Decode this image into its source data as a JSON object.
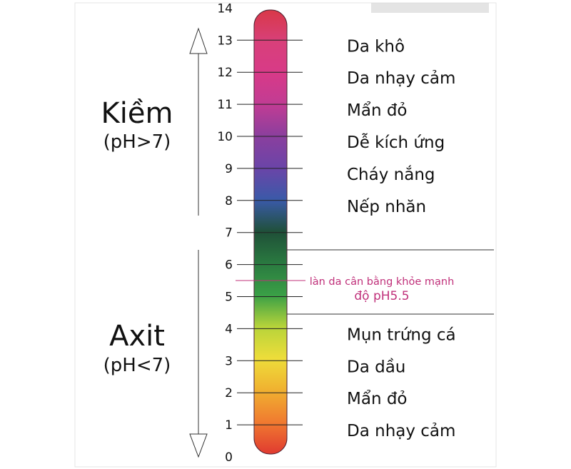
{
  "scale": {
    "min": 0,
    "max": 14,
    "ticks": [
      "0",
      "1",
      "2",
      "3",
      "4",
      "5",
      "6",
      "7",
      "8",
      "9",
      "10",
      "11",
      "12",
      "13",
      "14"
    ]
  },
  "alkaline": {
    "title": "Kiềm",
    "subtitle": "(pH>7)",
    "direction": "up"
  },
  "acid": {
    "title": "Axit",
    "subtitle": "(pH<7)",
    "direction": "down"
  },
  "alkaline_conditions": [
    {
      "label": "Da khô",
      "ph": 13
    },
    {
      "label": "Da nhạy cảm",
      "ph": 12
    },
    {
      "label": "Mẩn đỏ",
      "ph": 11
    },
    {
      "label": "Dễ kích ứng",
      "ph": 10
    },
    {
      "label": "Cháy nắng",
      "ph": 9
    },
    {
      "label": "Nếp nhăn",
      "ph": 8
    }
  ],
  "acid_conditions": [
    {
      "label": "Mụn trứng cá",
      "ph": 4
    },
    {
      "label": "Da dầu",
      "ph": 3
    },
    {
      "label": "Mẩn đỏ",
      "ph": 2
    },
    {
      "label": "Da nhạy cảm",
      "ph": 1
    }
  ],
  "healthy": {
    "line1": "làn da cân bằng khỏe mạnh",
    "line2": "độ pH5.5",
    "ph": 5.5,
    "color": "#c0307a"
  },
  "gradient_colors": [
    "#e03a30",
    "#f07a30",
    "#f0b030",
    "#eedd3a",
    "#b8d43a",
    "#3aa046",
    "#2a7a40",
    "#1f5038",
    "#3a5aa8",
    "#6a45a8",
    "#8a3f9e",
    "#c03c94",
    "#d83a88",
    "#d8407a",
    "#d93848"
  ]
}
